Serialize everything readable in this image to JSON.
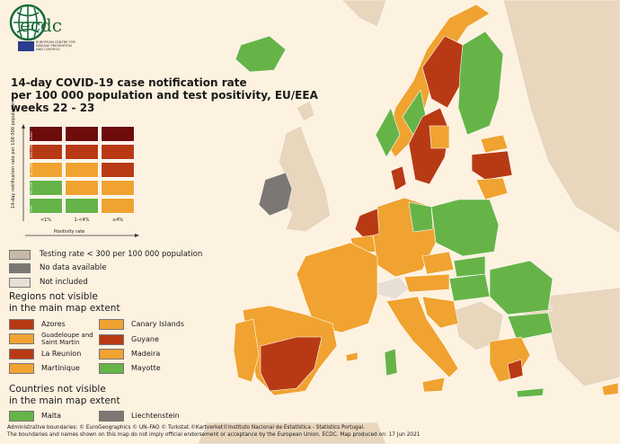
{
  "logo": {
    "name": "ecdc",
    "tagline_line1": "EUROPEAN CENTRE FOR",
    "tagline_line2": "DISEASE PREVENTION",
    "tagline_line3": "AND CONTROL"
  },
  "title": {
    "line1": "14-day COVID-19 case notification rate",
    "line2": "per 100 000 population and test positivity, EU/EEA",
    "line3": "weeks 22 - 23"
  },
  "matrix": {
    "y_label": "14-day notification rate per 100 000 population",
    "x_label": "Positivity rate",
    "columns": [
      "<1%",
      "1-<4%",
      "≥4%"
    ],
    "rows": [
      {
        "label": "≥500",
        "colors": [
          "#6e0b0b",
          "#6e0b0b",
          "#6e0b0b"
        ]
      },
      {
        "label": "200-<500",
        "colors": [
          "#b83a14",
          "#b83a14",
          "#b83a14"
        ]
      },
      {
        "label": "75-<200",
        "colors": [
          "#f0a330",
          "#f0a330",
          "#b83a14"
        ]
      },
      {
        "label": "50-<75",
        "colors": [
          "#66b447",
          "#f0a330",
          "#f0a330"
        ]
      },
      {
        "label": "<50",
        "colors": [
          "#66b447",
          "#66b447",
          "#f0a330"
        ]
      }
    ]
  },
  "status_legend": [
    {
      "label": "Testing rate < 300 per 100 000 population",
      "color": "#c8b8a6"
    },
    {
      "label": "No data available",
      "color": "#7d7773"
    },
    {
      "label": "Not included",
      "color": "#e8dfd4"
    }
  ],
  "regions_heading_line1": "Regions not visible",
  "regions_heading_line2": "in the main map extent",
  "regions": [
    {
      "label": "Azores",
      "color": "#b83a14"
    },
    {
      "label": "Canary Islands",
      "color": "#f0a330"
    },
    {
      "label": "Guadeloupe and Saint Martin",
      "color": "#f0a330"
    },
    {
      "label": "Guyane",
      "color": "#b83a14"
    },
    {
      "label": "La Reunion",
      "color": "#b83a14"
    },
    {
      "label": "Madeira",
      "color": "#f0a330"
    },
    {
      "label": "Martinique",
      "color": "#f0a330"
    },
    {
      "label": "Mayotte",
      "color": "#66b447"
    }
  ],
  "countries_heading_line1": "Countries not visible",
  "countries_heading_line2": "in the main map extent",
  "countries": [
    {
      "label": "Malta",
      "color": "#66b447"
    },
    {
      "label": "Liechtenstein",
      "color": "#7d7773"
    }
  ],
  "footer": {
    "line1": "Administrative boundaries: © EuroGeographics © UN–FAO © Turkstat.©Kartverket©Instituto Nacional de Estatística - Statistics Portugal.",
    "line2": "The boundaries and names shown on this map do not imply official endorsement or acceptance by the European Union. ECDC. Map produced on: 17 Jun 2021"
  },
  "colors": {
    "dark_red": "#6e0b0b",
    "red": "#b83a14",
    "orange": "#f0a330",
    "green": "#66b447",
    "low_testing": "#c8b8a6",
    "no_data": "#7d7773",
    "not_included": "#e8dfd4",
    "background": "#fdf1e0",
    "sea": "#d9b897"
  }
}
